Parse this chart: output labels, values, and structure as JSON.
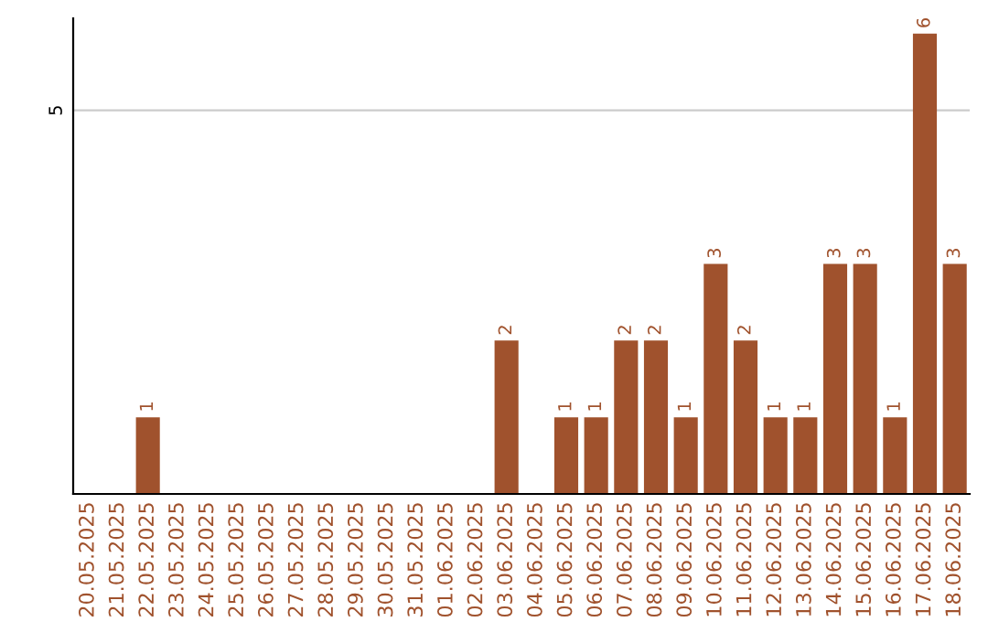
{
  "chart_data": {
    "type": "bar",
    "categories": [
      "20.05.2025",
      "21.05.2025",
      "22.05.2025",
      "23.05.2025",
      "24.05.2025",
      "25.05.2025",
      "26.05.2025",
      "27.05.2025",
      "28.05.2025",
      "29.05.2025",
      "30.05.2025",
      "31.05.2025",
      "01.06.2025",
      "02.06.2025",
      "03.06.2025",
      "04.06.2025",
      "05.06.2025",
      "06.06.2025",
      "07.06.2025",
      "08.06.2025",
      "09.06.2025",
      "10.06.2025",
      "11.06.2025",
      "12.06.2025",
      "13.06.2025",
      "14.06.2025",
      "15.06.2025",
      "16.06.2025",
      "17.06.2025",
      "18.06.2025"
    ],
    "values": [
      0,
      0,
      1,
      0,
      0,
      0,
      0,
      0,
      0,
      0,
      0,
      0,
      0,
      0,
      2,
      0,
      1,
      1,
      2,
      2,
      1,
      3,
      2,
      1,
      1,
      3,
      3,
      1,
      6,
      3
    ],
    "value_labels": [
      null,
      null,
      "1",
      null,
      null,
      null,
      null,
      null,
      null,
      null,
      null,
      null,
      null,
      null,
      "2",
      null,
      "1",
      "1",
      "2",
      "2",
      "1",
      "3",
      "2",
      "1",
      "1",
      "3",
      "3",
      "1",
      "6",
      "3"
    ],
    "color": "#a0522d",
    "ylim": [
      0,
      6.2
    ],
    "yticks": [
      5
    ],
    "grid": "y"
  }
}
